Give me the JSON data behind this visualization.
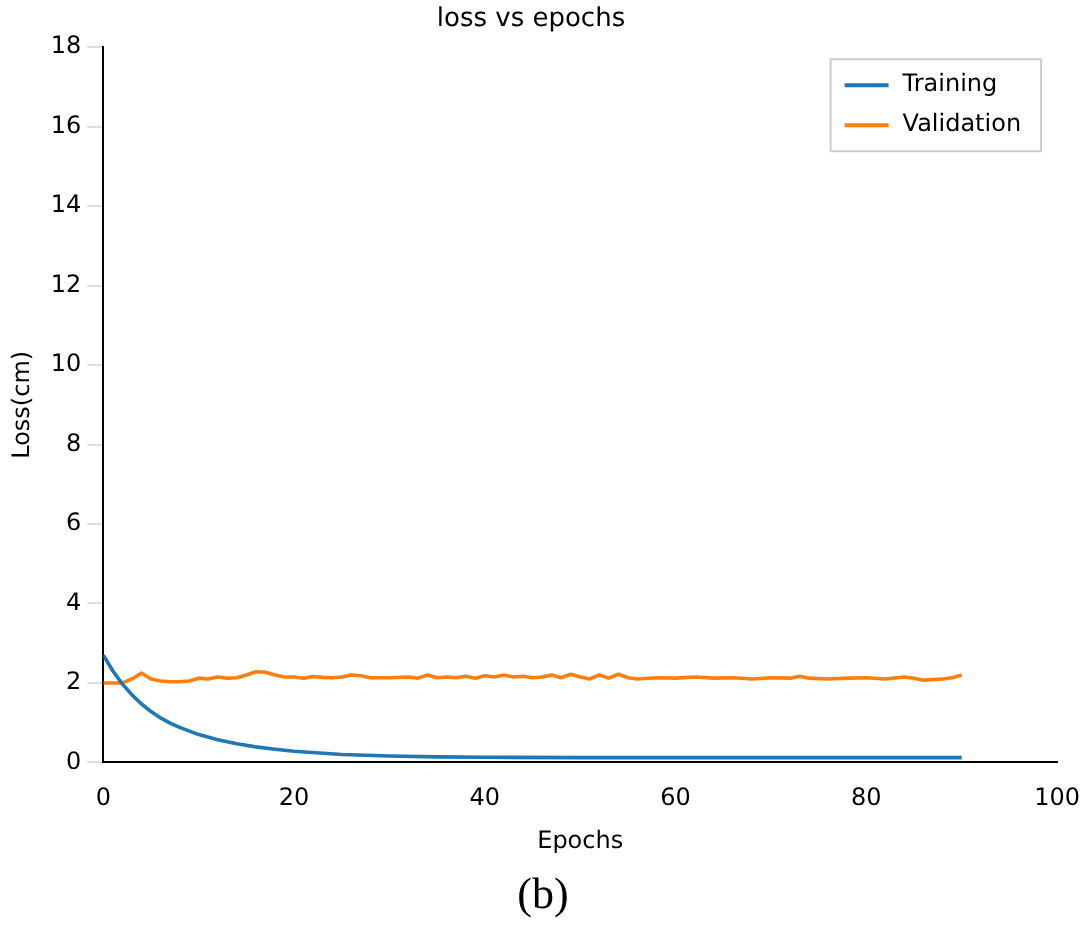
{
  "chart_data": {
    "type": "line",
    "title": "loss vs epochs",
    "xlabel": "Epochs",
    "ylabel": "Loss(cm)",
    "xlim": [
      0,
      100
    ],
    "xticks": [
      0,
      20,
      40,
      60,
      80,
      100
    ],
    "ylim": [
      0,
      18
    ],
    "yticks": [
      0,
      2,
      4,
      6,
      8,
      10,
      12,
      14,
      16,
      18
    ],
    "legend": "top right",
    "grid": false,
    "marker": "none",
    "line_style": "solid",
    "annotations": [
      "(b)"
    ],
    "series": [
      {
        "name": "Training",
        "color": "#1f77b4",
        "x": [
          0,
          1,
          2,
          3,
          4,
          5,
          6,
          7,
          8,
          10,
          12,
          14,
          16,
          18,
          20,
          25,
          30,
          35,
          40,
          50,
          60,
          70,
          80,
          90
        ],
        "values": [
          2.7,
          2.3,
          1.97,
          1.7,
          1.47,
          1.28,
          1.12,
          0.99,
          0.88,
          0.7,
          0.57,
          0.47,
          0.39,
          0.33,
          0.28,
          0.2,
          0.16,
          0.14,
          0.13,
          0.12,
          0.12,
          0.12,
          0.12,
          0.12
        ]
      },
      {
        "name": "Validation",
        "color": "#ff7f0e",
        "x": [
          0,
          2,
          3,
          4,
          5,
          6,
          7,
          8,
          9,
          10,
          11,
          12,
          13,
          14,
          15,
          16,
          17,
          18,
          19,
          20,
          21,
          22,
          23,
          24,
          25,
          26,
          27,
          28,
          30,
          32,
          33,
          34,
          35,
          36,
          37,
          38,
          39,
          40,
          41,
          42,
          43,
          44,
          45,
          46,
          47,
          48,
          49,
          50,
          51,
          52,
          53,
          54,
          55,
          56,
          58,
          60,
          62,
          64,
          66,
          68,
          70,
          72,
          73,
          74,
          76,
          78,
          80,
          82,
          84,
          85,
          86,
          88,
          89,
          90
        ],
        "values": [
          2.0,
          2.0,
          2.1,
          2.25,
          2.1,
          2.05,
          2.03,
          2.03,
          2.05,
          2.12,
          2.1,
          2.15,
          2.12,
          2.13,
          2.2,
          2.28,
          2.27,
          2.2,
          2.15,
          2.15,
          2.12,
          2.16,
          2.14,
          2.13,
          2.15,
          2.2,
          2.18,
          2.13,
          2.13,
          2.15,
          2.12,
          2.2,
          2.13,
          2.15,
          2.13,
          2.17,
          2.12,
          2.18,
          2.15,
          2.2,
          2.15,
          2.17,
          2.13,
          2.15,
          2.2,
          2.13,
          2.22,
          2.15,
          2.1,
          2.2,
          2.12,
          2.22,
          2.13,
          2.1,
          2.13,
          2.12,
          2.15,
          2.12,
          2.13,
          2.1,
          2.13,
          2.12,
          2.17,
          2.12,
          2.1,
          2.12,
          2.13,
          2.1,
          2.15,
          2.12,
          2.07,
          2.1,
          2.13,
          2.2
        ]
      }
    ]
  }
}
